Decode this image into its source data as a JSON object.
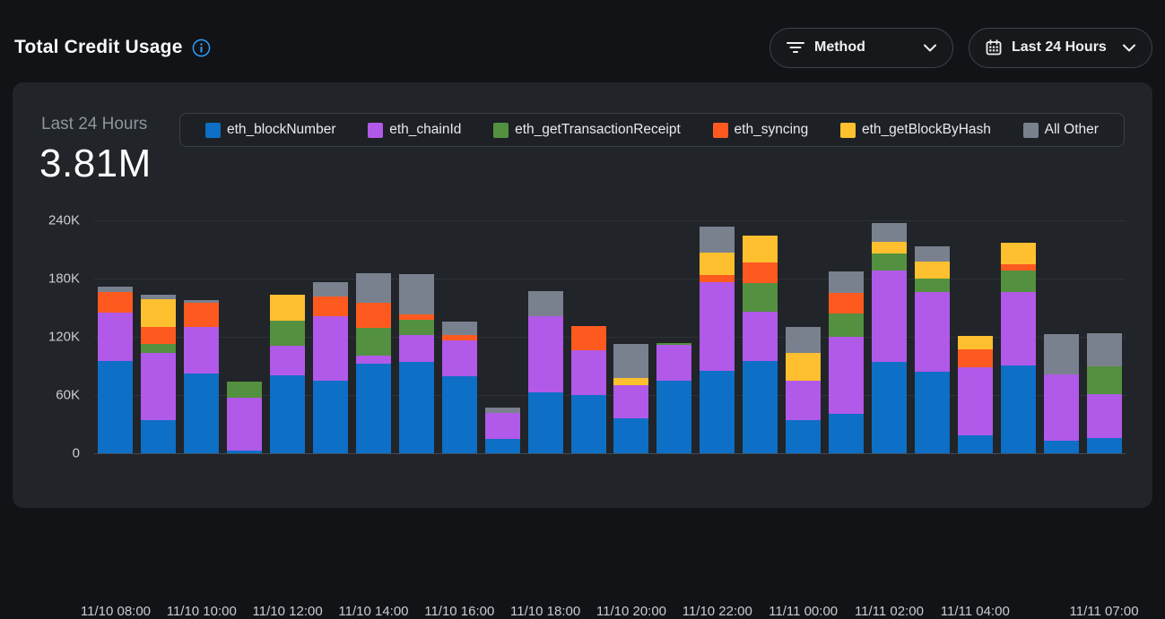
{
  "header": {
    "title": "Total Credit Usage",
    "info_icon_color": "#2e9bf0"
  },
  "controls": {
    "method_button": {
      "label": "Method",
      "icon": "filter-icon"
    },
    "range_button": {
      "label": "Last 24 Hours",
      "icon": "calendar-icon"
    }
  },
  "panel": {
    "summary_label": "Last 24 Hours",
    "summary_value": "3.81M"
  },
  "chart_data": {
    "type": "bar",
    "subtype": "stacked",
    "title": "Total Credit Usage",
    "unit": "K credits",
    "ylim": [
      0,
      240
    ],
    "grid": true,
    "legend_position": "top",
    "y_ticks": [
      {
        "value": 0,
        "label": "0"
      },
      {
        "value": 60,
        "label": "60K"
      },
      {
        "value": 120,
        "label": "120K"
      },
      {
        "value": 180,
        "label": "180K"
      },
      {
        "value": 240,
        "label": "240K"
      }
    ],
    "x_ticks": [
      {
        "index": 0,
        "label": "11/10 08:00"
      },
      {
        "index": 2,
        "label": "11/10 10:00"
      },
      {
        "index": 4,
        "label": "11/10 12:00"
      },
      {
        "index": 6,
        "label": "11/10 14:00"
      },
      {
        "index": 8,
        "label": "11/10 16:00"
      },
      {
        "index": 10,
        "label": "11/10 18:00"
      },
      {
        "index": 12,
        "label": "11/10 20:00"
      },
      {
        "index": 14,
        "label": "11/10 22:00"
      },
      {
        "index": 16,
        "label": "11/11 00:00"
      },
      {
        "index": 18,
        "label": "11/11 02:00"
      },
      {
        "index": 20,
        "label": "11/11 04:00"
      },
      {
        "index": 23,
        "label": "11/11 07:00"
      }
    ],
    "series": [
      {
        "name": "eth_blockNumber",
        "color": "#0d6fc5",
        "values": [
          95,
          34.5,
          82,
          3,
          80,
          75,
          92,
          94,
          79,
          15,
          63,
          60,
          36,
          74.5,
          85,
          95,
          34.5,
          41,
          94,
          84,
          18.5,
          90.5,
          13,
          16
        ]
      },
      {
        "name": "eth_chainId",
        "color": "#b159e8",
        "values": [
          50,
          69,
          48,
          54.5,
          31,
          66,
          9,
          28,
          37,
          27,
          78,
          46,
          34.5,
          37.5,
          91,
          51,
          40,
          79,
          94,
          82,
          70.5,
          76,
          68,
          44.5
        ]
      },
      {
        "name": "eth_getTransactionReceipt",
        "color": "#53903f",
        "values": [
          0,
          9,
          0,
          16.5,
          26,
          0,
          28,
          16,
          0,
          0,
          0,
          0,
          0,
          1.5,
          0,
          29,
          0,
          24,
          17.5,
          14,
          0,
          22,
          0,
          29
        ]
      },
      {
        "name": "eth_syncing",
        "color": "#fe5a20",
        "values": [
          21,
          18,
          25,
          0,
          0,
          21,
          26,
          5,
          6,
          0,
          0,
          25,
          0,
          0,
          8,
          22,
          0,
          21,
          0,
          0,
          18,
          6,
          0,
          0
        ]
      },
      {
        "name": "eth_getBlockByHash",
        "color": "#fec02f",
        "values": [
          0,
          28,
          0,
          0,
          26,
          0,
          0,
          0,
          0,
          0,
          0,
          0,
          7,
          0,
          23,
          27.5,
          28.5,
          0,
          12,
          18,
          14,
          22.5,
          0,
          0
        ]
      },
      {
        "name": "All Other",
        "color": "#79818f",
        "values": [
          6,
          4.5,
          3,
          0,
          0,
          14,
          31,
          42,
          14,
          5,
          26,
          0,
          35,
          0,
          27,
          0,
          27,
          22,
          19.5,
          15,
          0,
          0,
          42,
          34
        ]
      }
    ]
  }
}
